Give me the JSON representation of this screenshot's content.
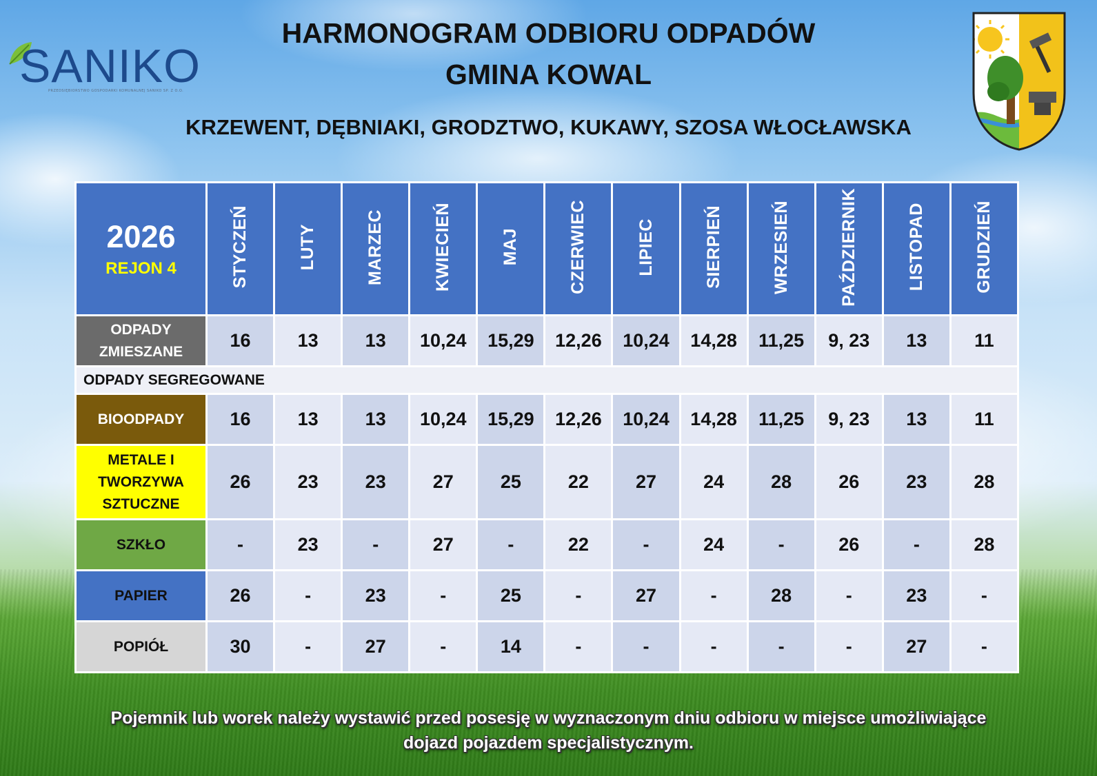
{
  "header": {
    "title_line1": "HARMONOGRAM ODBIORU ODPADÓW",
    "title_line2": "GMINA KOWAL",
    "localities": "KRZEWENT, DĘBNIAKI, GRODZTWO, KUKAWY, SZOSA WŁOCŁAWSKA"
  },
  "logo": {
    "name": "SANIKO",
    "subtitle": "PRZEDSIĘBIORSTWO GOSPODARKI KOMUNALNEJ SANIKO SP. Z O.O."
  },
  "crest_icon": "gmina-kowal-coat-of-arms",
  "table": {
    "year": "2026",
    "region": "REJON 4",
    "months": [
      "STYCZEŃ",
      "LUTY",
      "MARZEC",
      "KWIECIEŃ",
      "MAJ",
      "CZERWIEC",
      "LIPIEC",
      "SIERPIEŃ",
      "WRZESIEŃ",
      "PAŹDZIERNIK",
      "LISTOPAD",
      "GRUDZIEŃ"
    ],
    "section_label": "ODPADY SEGREGOWANE",
    "rows": [
      {
        "label_lines": [
          "ODPADY",
          "ZMIESZANE"
        ],
        "bg": "#6b6b6b",
        "fg": "#ffffff",
        "values": [
          "16",
          "13",
          "13",
          "10,24",
          "15,29",
          "12,26",
          "10,24",
          "14,28",
          "11,25",
          "9, 23",
          "13",
          "11"
        ]
      },
      {
        "label_lines": [
          "BIOODPADY"
        ],
        "bg": "#7a5a0c",
        "fg": "#ffffff",
        "values": [
          "16",
          "13",
          "13",
          "10,24",
          "15,29",
          "12,26",
          "10,24",
          "14,28",
          "11,25",
          "9, 23",
          "13",
          "11"
        ]
      },
      {
        "label_lines": [
          "METALE I",
          "TWORZYWA",
          "SZTUCZNE"
        ],
        "bg": "#ffff00",
        "fg": "#111111",
        "values": [
          "26",
          "23",
          "23",
          "27",
          "25",
          "22",
          "27",
          "24",
          "28",
          "26",
          "23",
          "28"
        ]
      },
      {
        "label_lines": [
          "SZKŁO"
        ],
        "bg": "#6fa845",
        "fg": "#111111",
        "values": [
          "-",
          "23",
          "-",
          "27",
          "-",
          "22",
          "-",
          "24",
          "-",
          "26",
          "-",
          "28"
        ]
      },
      {
        "label_lines": [
          "PAPIER"
        ],
        "bg": "#4472c4",
        "fg": "#111111",
        "values": [
          "26",
          "-",
          "23",
          "-",
          "25",
          "-",
          "27",
          "-",
          "28",
          "-",
          "23",
          "-"
        ]
      },
      {
        "label_lines": [
          "POPIÓŁ"
        ],
        "bg": "#d6d6d6",
        "fg": "#111111",
        "values": [
          "30",
          "-",
          "27",
          "-",
          "14",
          "-",
          "-",
          "-",
          "-",
          "-",
          "27",
          "-"
        ]
      }
    ]
  },
  "footer": {
    "line1": "Pojemnik lub worek należy wystawić przed posesję w wyznaczonym dniu odbioru  w miejsce umożliwiające",
    "line2": "dojazd pojazdem specjalistycznym."
  }
}
